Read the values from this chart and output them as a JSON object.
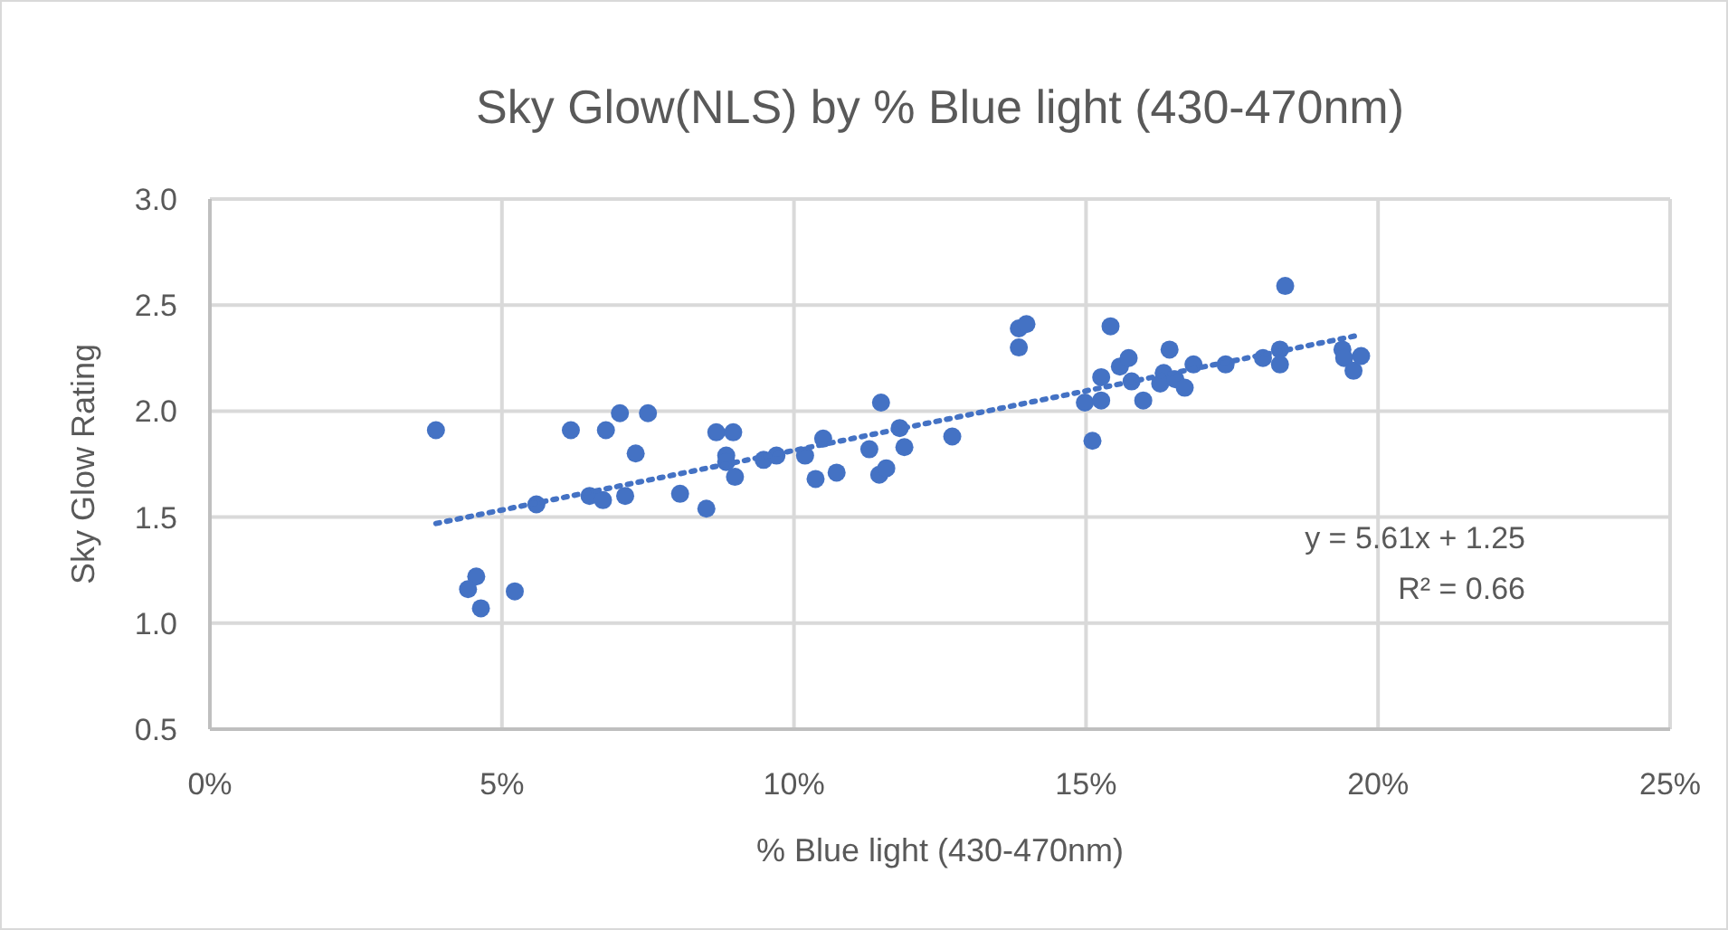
{
  "chart_data": {
    "type": "scatter",
    "title": "Sky Glow(NLS) by % Blue light (430-470nm)",
    "xlabel": "% Blue light (430-470nm)",
    "ylabel": "Sky Glow Rating",
    "xlim": [
      0,
      25
    ],
    "xticks": [
      {
        "value": 0,
        "label": "0%"
      },
      {
        "value": 5,
        "label": "5%"
      },
      {
        "value": 10,
        "label": "10%"
      },
      {
        "value": 15,
        "label": "15%"
      },
      {
        "value": 20,
        "label": "20%"
      },
      {
        "value": 25,
        "label": "25%"
      }
    ],
    "ylim": [
      0.5,
      3.0
    ],
    "yticks": [
      {
        "value": 0.5,
        "label": "0.5"
      },
      {
        "value": 1.0,
        "label": "1.0"
      },
      {
        "value": 1.5,
        "label": "1.5"
      },
      {
        "value": 2.0,
        "label": "2.0"
      },
      {
        "value": 2.5,
        "label": "2.5"
      },
      {
        "value": 3.0,
        "label": "3.0"
      }
    ],
    "grid": true,
    "marker": "circle",
    "annotations": [
      "y = 5.61x + 1.25",
      "R² = 0.66"
    ],
    "series": [
      {
        "color": "#4472c4",
        "x": [
          3.87,
          6.18,
          6.78,
          7.02,
          7.5,
          7.29,
          8.67,
          8.96,
          8.84,
          8.84,
          8.99,
          9.48,
          9.7,
          5.59,
          6.5,
          6.73,
          7.11,
          8.05,
          8.5,
          4.56,
          4.42,
          4.64,
          5.22,
          10.19,
          10.5,
          10.37,
          10.73,
          11.29,
          11.49,
          11.81,
          11.89,
          11.46,
          11.58,
          12.71,
          13.85,
          13.85,
          13.98,
          14.98,
          15.11,
          15.26,
          15.26,
          15.42,
          15.58,
          15.73,
          15.78,
          15.98,
          16.33,
          16.27,
          16.43,
          16.53,
          16.69,
          16.84,
          17.39,
          18.03,
          18.32,
          18.32,
          18.41,
          19.39,
          19.42,
          19.58,
          19.71
        ],
        "values": [
          1.91,
          1.91,
          1.91,
          1.99,
          1.99,
          1.8,
          1.9,
          1.9,
          1.79,
          1.76,
          1.69,
          1.77,
          1.79,
          1.56,
          1.6,
          1.58,
          1.6,
          1.61,
          1.54,
          1.22,
          1.16,
          1.07,
          1.15,
          1.79,
          1.87,
          1.68,
          1.71,
          1.82,
          2.04,
          1.92,
          1.83,
          1.7,
          1.73,
          1.88,
          2.3,
          2.39,
          2.41,
          2.04,
          1.86,
          2.16,
          2.05,
          2.4,
          2.21,
          2.25,
          2.14,
          2.05,
          2.18,
          2.13,
          2.29,
          2.15,
          2.11,
          2.22,
          2.22,
          2.25,
          2.29,
          2.22,
          2.59,
          2.29,
          2.25,
          2.19,
          2.26
        ]
      },
      {
        "type": "line",
        "color": "#4472c4",
        "line_style": "dotted",
        "marker": "none",
        "x": [
          3.87,
          19.71
        ],
        "values": [
          1.47,
          2.36
        ]
      }
    ]
  }
}
